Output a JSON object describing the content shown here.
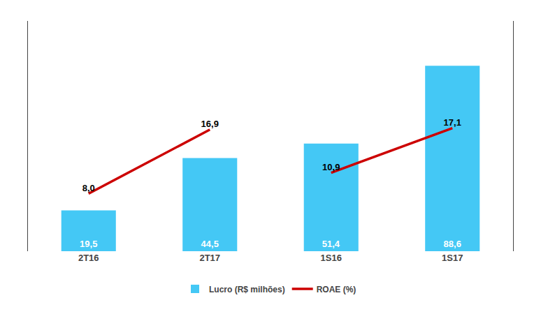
{
  "chart_data": {
    "type": "bar",
    "categories": [
      "2T16",
      "2T17",
      "1S16",
      "1S17"
    ],
    "series": [
      {
        "name": "Lucro (R$ milhões)",
        "type": "bar",
        "color": "#44C8F5",
        "values": [
          19.5,
          44.5,
          51.4,
          88.6
        ],
        "value_labels": [
          "19,5",
          "44,5",
          "51,4",
          "88,6"
        ]
      },
      {
        "name": "ROAE (%)",
        "type": "line",
        "axis": "y2",
        "color": "#CC0000",
        "values": [
          8.0,
          16.9,
          10.9,
          17.1
        ],
        "value_labels": [
          "8,0",
          "16,9",
          "10,9",
          "17,1"
        ],
        "segments": [
          [
            0,
            1
          ],
          [
            2,
            3
          ]
        ]
      }
    ],
    "ylim": [
      0,
      110
    ],
    "y2lim": [
      0,
      32
    ],
    "data_labels": true,
    "tick_labels": "x",
    "grid": false,
    "legend": "bottom"
  }
}
